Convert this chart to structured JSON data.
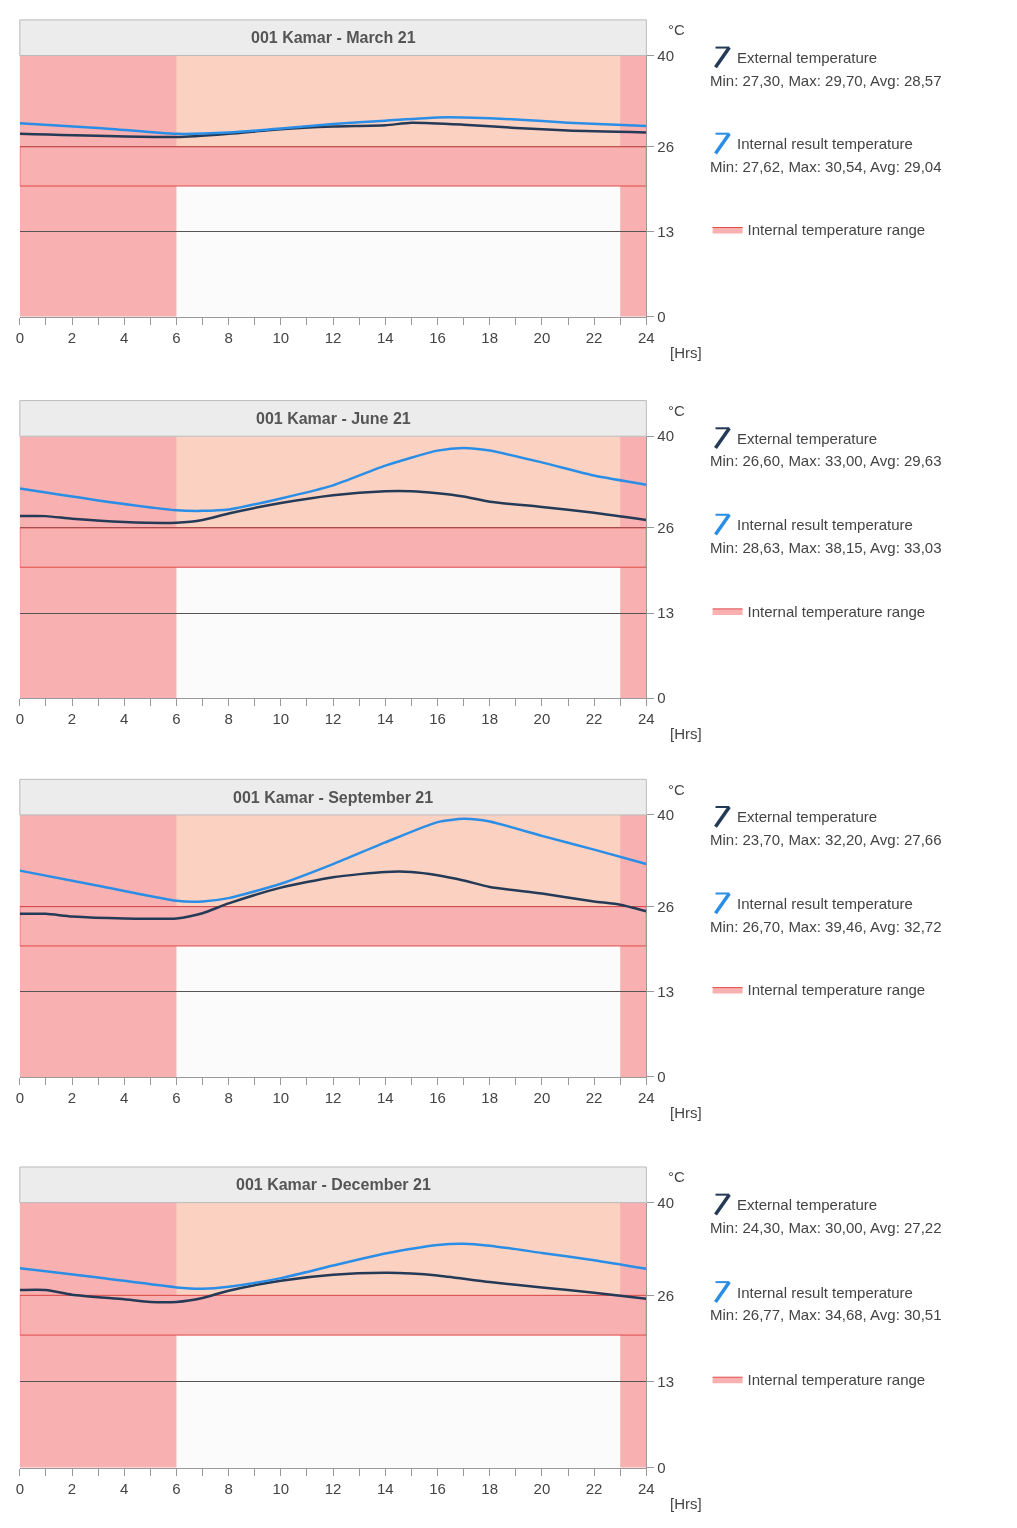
{
  "chart_data": [
    {
      "type": "line",
      "title": "001 Kamar - March 21",
      "xlabel": "[Hrs]",
      "ylabel": "°C",
      "xlim": [
        0,
        24
      ],
      "xticks": [
        0,
        {
          "value": 1,
          "label": null
        },
        2,
        {
          "value": 3,
          "label": null
        },
        4,
        {
          "value": 5,
          "label": null
        },
        6,
        {
          "value": 7,
          "label": null
        },
        8,
        {
          "value": 9,
          "label": null
        },
        10,
        {
          "value": 11,
          "label": null
        },
        12,
        {
          "value": 13,
          "label": null
        },
        14,
        {
          "value": 15,
          "label": null
        },
        16,
        {
          "value": 17,
          "label": null
        },
        18,
        {
          "value": 19,
          "label": null
        },
        20,
        {
          "value": 21,
          "label": null
        },
        22,
        {
          "value": 23,
          "label": null
        },
        24
      ],
      "ylim": [
        0,
        40
      ],
      "yticks": [
        0,
        13,
        26,
        40
      ],
      "grid": "y",
      "legend": "right",
      "line_style": "solid",
      "marker": "none",
      "series": [
        {
          "name": "External temperature",
          "color": "#243a56",
          "x": [
            0,
            6,
            8,
            10,
            12,
            14,
            15,
            17,
            19,
            21,
            24
          ],
          "values": [
            28.0,
            27.5,
            28.0,
            28.7,
            29.1,
            29.3,
            29.7,
            29.4,
            28.9,
            28.5,
            28.2
          ]
        },
        {
          "name": "Internal result temperature",
          "color": "#2b8ee6",
          "x": [
            0,
            3,
            6,
            8,
            10,
            12,
            14,
            16,
            17,
            19,
            21,
            24
          ],
          "values": [
            29.6,
            28.9,
            28.0,
            28.2,
            28.8,
            29.5,
            30.0,
            30.5,
            30.5,
            30.2,
            29.7,
            29.2
          ]
        }
      ],
      "bands": [
        {
          "axis": "y",
          "from": 26,
          "to": 40,
          "color": "#fbd2c2"
        },
        {
          "axis": "y",
          "from": 20,
          "to": 26,
          "color": "#f9b0b0",
          "label": "Internal temperature range"
        },
        {
          "axis": "x",
          "from": 0,
          "to": 6,
          "color": "#f9b0b0"
        },
        {
          "axis": "x",
          "from": 23,
          "to": 24,
          "color": "#f9b0b0"
        }
      ],
      "annotations": [
        "Min: 27,30, Max: 29,70, Avg: 28,57",
        "Min: 27,62, Max: 30,54, Avg: 29,04"
      ]
    },
    {
      "type": "line",
      "title": "001 Kamar - June 21",
      "xlabel": "[Hrs]",
      "ylabel": "°C",
      "xlim": [
        0,
        24
      ],
      "xticks": [
        0,
        {
          "value": 1,
          "label": null
        },
        2,
        {
          "value": 3,
          "label": null
        },
        4,
        {
          "value": 5,
          "label": null
        },
        6,
        {
          "value": 7,
          "label": null
        },
        8,
        {
          "value": 9,
          "label": null
        },
        10,
        {
          "value": 11,
          "label": null
        },
        12,
        {
          "value": 13,
          "label": null
        },
        14,
        {
          "value": 15,
          "label": null
        },
        16,
        {
          "value": 17,
          "label": null
        },
        18,
        {
          "value": 19,
          "label": null
        },
        20,
        {
          "value": 21,
          "label": null
        },
        22,
        {
          "value": 23,
          "label": null
        },
        24
      ],
      "ylim": [
        0,
        40
      ],
      "yticks": [
        0,
        13,
        26,
        40
      ],
      "grid": "y",
      "legend": "right",
      "line_style": "solid",
      "marker": "none",
      "series": [
        {
          "name": "External temperature",
          "color": "#243a56",
          "x": [
            0,
            1,
            2,
            4,
            6,
            7,
            8,
            10,
            12,
            14,
            15,
            16,
            17,
            18,
            20,
            22,
            24
          ],
          "values": [
            27.8,
            27.8,
            27.4,
            26.9,
            26.8,
            27.2,
            28.2,
            29.8,
            31.0,
            31.6,
            31.6,
            31.3,
            30.8,
            30.0,
            29.2,
            28.3,
            27.2
          ]
        },
        {
          "name": "Internal result temperature",
          "color": "#2b8ee6",
          "x": [
            0,
            3,
            6,
            7,
            8,
            10,
            12,
            14,
            16,
            17,
            18,
            20,
            22,
            24
          ],
          "values": [
            32.0,
            30.2,
            28.7,
            28.6,
            28.8,
            30.5,
            32.5,
            35.5,
            37.8,
            38.2,
            37.8,
            36.0,
            34.0,
            32.6
          ]
        }
      ],
      "bands": [
        {
          "axis": "y",
          "from": 26,
          "to": 40,
          "color": "#fbd2c2"
        },
        {
          "axis": "y",
          "from": 20,
          "to": 26,
          "color": "#f9b0b0",
          "label": "Internal temperature range"
        },
        {
          "axis": "x",
          "from": 0,
          "to": 6,
          "color": "#f9b0b0"
        },
        {
          "axis": "x",
          "from": 23,
          "to": 24,
          "color": "#f9b0b0"
        }
      ],
      "annotations": [
        "Min: 26,60, Max: 33,00, Avg: 29,63",
        "Min: 28,63, Max: 38,15, Avg: 33,03"
      ]
    },
    {
      "type": "line",
      "title": "001 Kamar - September 21",
      "xlabel": "[Hrs]",
      "ylabel": "°C",
      "xlim": [
        0,
        24
      ],
      "xticks": [
        0,
        {
          "value": 1,
          "label": null
        },
        2,
        {
          "value": 3,
          "label": null
        },
        4,
        {
          "value": 5,
          "label": null
        },
        6,
        {
          "value": 7,
          "label": null
        },
        8,
        {
          "value": 9,
          "label": null
        },
        10,
        {
          "value": 11,
          "label": null
        },
        12,
        {
          "value": 13,
          "label": null
        },
        14,
        {
          "value": 15,
          "label": null
        },
        16,
        {
          "value": 17,
          "label": null
        },
        18,
        {
          "value": 19,
          "label": null
        },
        20,
        {
          "value": 21,
          "label": null
        },
        22,
        {
          "value": 23,
          "label": null
        },
        24
      ],
      "ylim": [
        0,
        40
      ],
      "yticks": [
        0,
        13,
        26,
        40
      ],
      "grid": "y",
      "legend": "right",
      "line_style": "solid",
      "marker": "none",
      "series": [
        {
          "name": "External temperature",
          "color": "#243a56",
          "x": [
            0,
            1,
            2,
            4,
            6,
            7,
            8,
            10,
            12,
            14,
            15,
            16,
            17,
            18,
            20,
            22,
            23,
            24
          ],
          "values": [
            24.9,
            24.9,
            24.5,
            24.2,
            24.2,
            25.0,
            26.5,
            28.9,
            30.5,
            31.3,
            31.3,
            30.8,
            30.0,
            29.0,
            28.0,
            26.8,
            26.3,
            25.3
          ]
        },
        {
          "name": "Internal result temperature",
          "color": "#2b8ee6",
          "x": [
            0,
            3,
            6,
            7,
            8,
            10,
            12,
            14,
            16,
            17,
            18,
            20,
            22,
            24
          ],
          "values": [
            31.5,
            29.2,
            26.9,
            26.8,
            27.3,
            29.5,
            32.5,
            35.8,
            38.9,
            39.4,
            39.0,
            36.8,
            34.7,
            32.5
          ]
        }
      ],
      "bands": [
        {
          "axis": "y",
          "from": 26,
          "to": 40,
          "color": "#fbd2c2"
        },
        {
          "axis": "y",
          "from": 20,
          "to": 26,
          "color": "#f9b0b0",
          "label": "Internal temperature range"
        },
        {
          "axis": "x",
          "from": 0,
          "to": 6,
          "color": "#f9b0b0"
        },
        {
          "axis": "x",
          "from": 23,
          "to": 24,
          "color": "#f9b0b0"
        }
      ],
      "annotations": [
        "Min: 23,70, Max: 32,20, Avg: 27,66",
        "Min: 26,70, Max: 39,46, Avg: 32,72"
      ]
    },
    {
      "type": "line",
      "title": "001 Kamar - December 21",
      "xlabel": "[Hrs]",
      "ylabel": "°C",
      "xlim": [
        0,
        24
      ],
      "xticks": [
        0,
        {
          "value": 1,
          "label": null
        },
        2,
        {
          "value": 3,
          "label": null
        },
        4,
        {
          "value": 5,
          "label": null
        },
        6,
        {
          "value": 7,
          "label": null
        },
        8,
        {
          "value": 9,
          "label": null
        },
        10,
        {
          "value": 11,
          "label": null
        },
        12,
        {
          "value": 13,
          "label": null
        },
        14,
        {
          "value": 15,
          "label": null
        },
        16,
        {
          "value": 17,
          "label": null
        },
        18,
        {
          "value": 19,
          "label": null
        },
        20,
        {
          "value": 21,
          "label": null
        },
        22,
        {
          "value": 23,
          "label": null
        },
        24
      ],
      "ylim": [
        0,
        40
      ],
      "yticks": [
        0,
        13,
        26,
        40
      ],
      "grid": "y",
      "legend": "right",
      "line_style": "solid",
      "marker": "none",
      "series": [
        {
          "name": "External temperature",
          "color": "#243a56",
          "x": [
            0,
            1,
            2,
            4,
            5,
            6,
            7,
            8,
            10,
            12,
            14,
            15,
            16,
            18,
            20,
            22,
            24
          ],
          "values": [
            26.8,
            26.8,
            26.1,
            25.4,
            25.0,
            25.0,
            25.6,
            26.7,
            28.2,
            29.1,
            29.4,
            29.3,
            29.0,
            28.0,
            27.2,
            26.4,
            25.5
          ]
        },
        {
          "name": "Internal result temperature",
          "color": "#2b8ee6",
          "x": [
            0,
            3,
            6,
            7,
            8,
            10,
            12,
            14,
            16,
            17,
            18,
            20,
            22,
            24
          ],
          "values": [
            30.1,
            28.7,
            27.2,
            27.0,
            27.3,
            28.6,
            30.5,
            32.3,
            33.6,
            33.8,
            33.5,
            32.4,
            31.3,
            30.0
          ]
        }
      ],
      "bands": [
        {
          "axis": "y",
          "from": 26,
          "to": 40,
          "color": "#fbd2c2"
        },
        {
          "axis": "y",
          "from": 20,
          "to": 26,
          "color": "#f9b0b0",
          "label": "Internal temperature range"
        },
        {
          "axis": "x",
          "from": 0,
          "to": 6,
          "color": "#f9b0b0"
        },
        {
          "axis": "x",
          "from": 23,
          "to": 24,
          "color": "#f9b0b0"
        }
      ],
      "annotations": [
        "Min: 24,30, Max: 30,00, Avg: 27,22",
        "Min: 26,77, Max: 34,68, Avg: 30,51"
      ]
    }
  ]
}
